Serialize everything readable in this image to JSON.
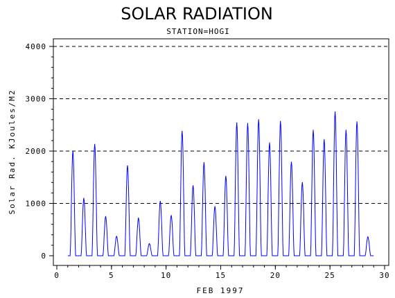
{
  "chart_data": {
    "type": "line",
    "title": "SOLAR RADIATION",
    "subtitle": "STATION=HOGI",
    "xlabel": "FEB 1997",
    "ylabel": "Solar Rad. KJoules/M2",
    "xlim": [
      0,
      30
    ],
    "ylim": [
      0,
      4000
    ],
    "x_ticks": [
      0,
      5,
      10,
      15,
      20,
      25,
      30
    ],
    "y_ticks": [
      0,
      1000,
      2000,
      3000,
      4000
    ],
    "y_tick_labels": [
      "0",
      "1000",
      "2000",
      "3000",
      "4000"
    ],
    "grid": "horizontal dashed at y ticks",
    "line_color": "#0000ff",
    "series": [
      {
        "daily_peaks": [
          {
            "day": 1,
            "peak": 2000
          },
          {
            "day": 2,
            "peak": 1100
          },
          {
            "day": 3,
            "peak": 2130
          },
          {
            "day": 4,
            "peak": 750
          },
          {
            "day": 5,
            "peak": 370
          },
          {
            "day": 6,
            "peak": 1720
          },
          {
            "day": 7,
            "peak": 720
          },
          {
            "day": 8,
            "peak": 230
          },
          {
            "day": 9,
            "peak": 1040
          },
          {
            "day": 10,
            "peak": 770
          },
          {
            "day": 11,
            "peak": 2380
          },
          {
            "day": 12,
            "peak": 1340
          },
          {
            "day": 13,
            "peak": 1780
          },
          {
            "day": 14,
            "peak": 940
          },
          {
            "day": 15,
            "peak": 1520
          },
          {
            "day": 16,
            "peak": 2540
          },
          {
            "day": 17,
            "peak": 2530
          },
          {
            "day": 18,
            "peak": 2600
          },
          {
            "day": 19,
            "peak": 2160
          },
          {
            "day": 20,
            "peak": 2570
          },
          {
            "day": 21,
            "peak": 1790
          },
          {
            "day": 22,
            "peak": 1400
          },
          {
            "day": 23,
            "peak": 2400
          },
          {
            "day": 24,
            "peak": 2220
          },
          {
            "day": 25,
            "peak": 2750
          },
          {
            "day": 26,
            "peak": 2400
          },
          {
            "day": 27,
            "peak": 2560
          },
          {
            "day": 28,
            "peak": 360
          }
        ]
      }
    ]
  }
}
